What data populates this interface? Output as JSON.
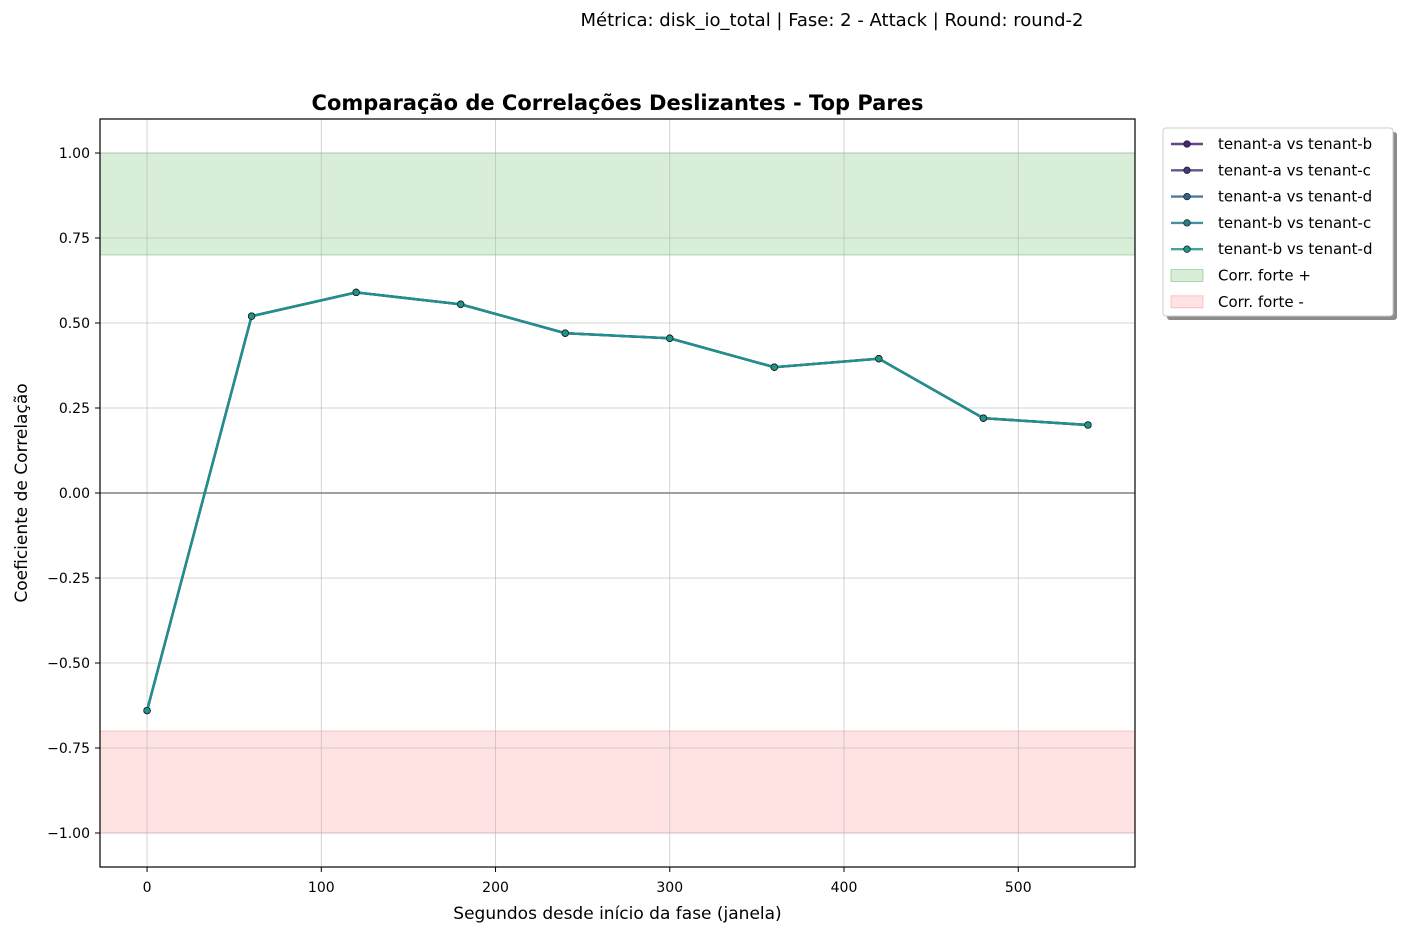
{
  "header": {
    "supertitle": "Métrica: disk_io_total | Fase: 2 - Attack | Round: round-2"
  },
  "chart_data": {
    "type": "line",
    "title": "Comparação de Correlações Deslizantes - Top Pares",
    "xlabel": "Segundos desde início da fase (janela)",
    "ylabel": "Coeficiente de Correlação",
    "xlim": [
      -27,
      567
    ],
    "ylim": [
      -1.1,
      1.1
    ],
    "xticks": [
      0,
      100,
      200,
      300,
      400,
      500
    ],
    "xtick_labels": [
      "0",
      "100",
      "200",
      "300",
      "400",
      "500"
    ],
    "yticks": [
      1.0,
      0.75,
      0.5,
      0.25,
      0.0,
      -0.25,
      -0.5,
      -0.75,
      -1.0
    ],
    "ytick_labels": [
      "1.00",
      "0.75",
      "0.50",
      "0.25",
      "0.00",
      "−0.25",
      "−0.50",
      "−0.75",
      "−1.00"
    ],
    "grid": true,
    "legend_position": "outside-top-right",
    "x": [
      0,
      60,
      120,
      180,
      240,
      300,
      360,
      420,
      480,
      540
    ],
    "series": [
      {
        "name": "tenant-a vs tenant-b",
        "color": "#482677",
        "values": [
          -0.64,
          0.52,
          0.59,
          0.555,
          0.47,
          0.455,
          0.37,
          0.395,
          0.22,
          0.2
        ]
      },
      {
        "name": "tenant-a vs tenant-c",
        "color": "#453781",
        "values": [
          -0.64,
          0.52,
          0.59,
          0.555,
          0.47,
          0.455,
          0.37,
          0.395,
          0.22,
          0.2
        ]
      },
      {
        "name": "tenant-a vs tenant-d",
        "color": "#33638d",
        "values": [
          -0.64,
          0.52,
          0.59,
          0.555,
          0.47,
          0.455,
          0.37,
          0.395,
          0.22,
          0.2
        ]
      },
      {
        "name": "tenant-b vs tenant-c",
        "color": "#287d8e",
        "values": [
          -0.64,
          0.52,
          0.59,
          0.555,
          0.47,
          0.455,
          0.37,
          0.395,
          0.22,
          0.2
        ]
      },
      {
        "name": "tenant-b vs tenant-d",
        "color": "#1f968b",
        "values": [
          -0.64,
          0.52,
          0.59,
          0.555,
          0.47,
          0.455,
          0.37,
          0.395,
          0.22,
          0.2
        ]
      }
    ],
    "bands": [
      {
        "name": "Corr. forte +",
        "from": 0.7,
        "to": 1.0,
        "color": "#2ca02c"
      },
      {
        "name": "Corr. forte -",
        "from": -1.0,
        "to": -0.7,
        "color": "#ff6666"
      }
    ],
    "reference_line": {
      "y": 0.0,
      "color": "#808080"
    }
  }
}
